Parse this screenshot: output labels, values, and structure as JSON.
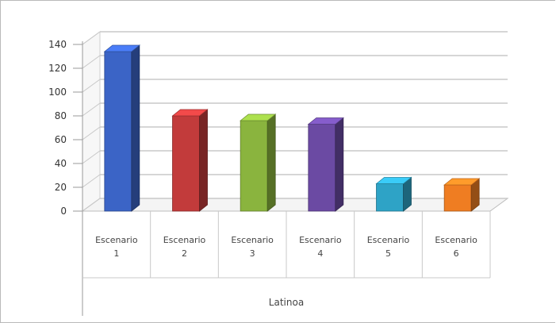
{
  "chart_data": {
    "type": "bar",
    "title": "",
    "ylabel": "",
    "ylim": [
      0,
      140
    ],
    "yticks": [
      0,
      20,
      40,
      60,
      80,
      100,
      120,
      140
    ],
    "ytick_labels": [
      "0",
      "20",
      "40",
      "60",
      "80",
      "100",
      "120",
      "140"
    ],
    "categories": [
      [
        "Escenario",
        "1"
      ],
      [
        "Escenario",
        "2"
      ],
      [
        "Escenario",
        "3"
      ],
      [
        "Escenario",
        "4"
      ],
      [
        "Escenario",
        "5"
      ],
      [
        "Escenario",
        "6"
      ]
    ],
    "group_label": "Latinoa",
    "values": [
      134,
      80,
      76,
      73,
      23,
      22
    ],
    "colors": [
      "#3b64c6",
      "#c23b3b",
      "#8ab43e",
      "#6b4aa3",
      "#2ea3c6",
      "#ef7d22"
    ],
    "grid": true,
    "legend": "none",
    "style": "3d"
  }
}
